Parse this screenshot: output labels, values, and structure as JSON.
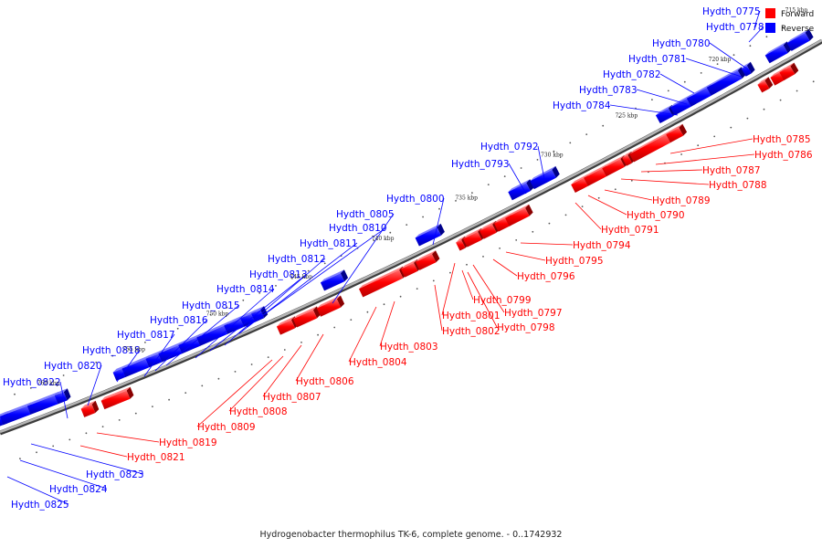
{
  "caption": "Hydrogenobacter thermophilus TK-6, complete genome. - 0..1742932",
  "legend": {
    "forward": "Forward",
    "reverse": "Reverse"
  },
  "colors": {
    "forward": "#ff0000",
    "reverse": "#0000ff",
    "backbone": "#888888"
  },
  "scale_labels": [
    "725 kbp",
    "730 kbp",
    "735 kbp",
    "740 kbp",
    "745 kbp",
    "750 kbp",
    "755 kbp",
    "760 kbp"
  ],
  "top_right_tick": "715 kbp",
  "top_right_tick2": "720 kbp",
  "reverse_genes": [
    "Hydth_0775",
    "Hydth_0778",
    "Hydth_0780",
    "Hydth_0781",
    "Hydth_0782",
    "Hydth_0783",
    "Hydth_0784",
    "Hydth_0792",
    "Hydth_0793",
    "Hydth_0800",
    "Hydth_0805",
    "Hydth_0810",
    "Hydth_0811",
    "Hydth_0812",
    "Hydth_0813",
    "Hydth_0814",
    "Hydth_0815",
    "Hydth_0816",
    "Hydth_0817",
    "Hydth_0818",
    "Hydth_0820",
    "Hydth_0822",
    "Hydth_0823",
    "Hydth_0824",
    "Hydth_0825"
  ],
  "forward_genes": [
    "Hydth_0785",
    "Hydth_0786",
    "Hydth_0787",
    "Hydth_0788",
    "Hydth_0789",
    "Hydth_0790",
    "Hydth_0791",
    "Hydth_0794",
    "Hydth_0795",
    "Hydth_0796",
    "Hydth_0799",
    "Hydth_0797",
    "Hydth_0798",
    "Hydth_0801",
    "Hydth_0802",
    "Hydth_0803",
    "Hydth_0804",
    "Hydth_0806",
    "Hydth_0807",
    "Hydth_0808",
    "Hydth_0809",
    "Hydth_0819",
    "Hydth_0821"
  ]
}
